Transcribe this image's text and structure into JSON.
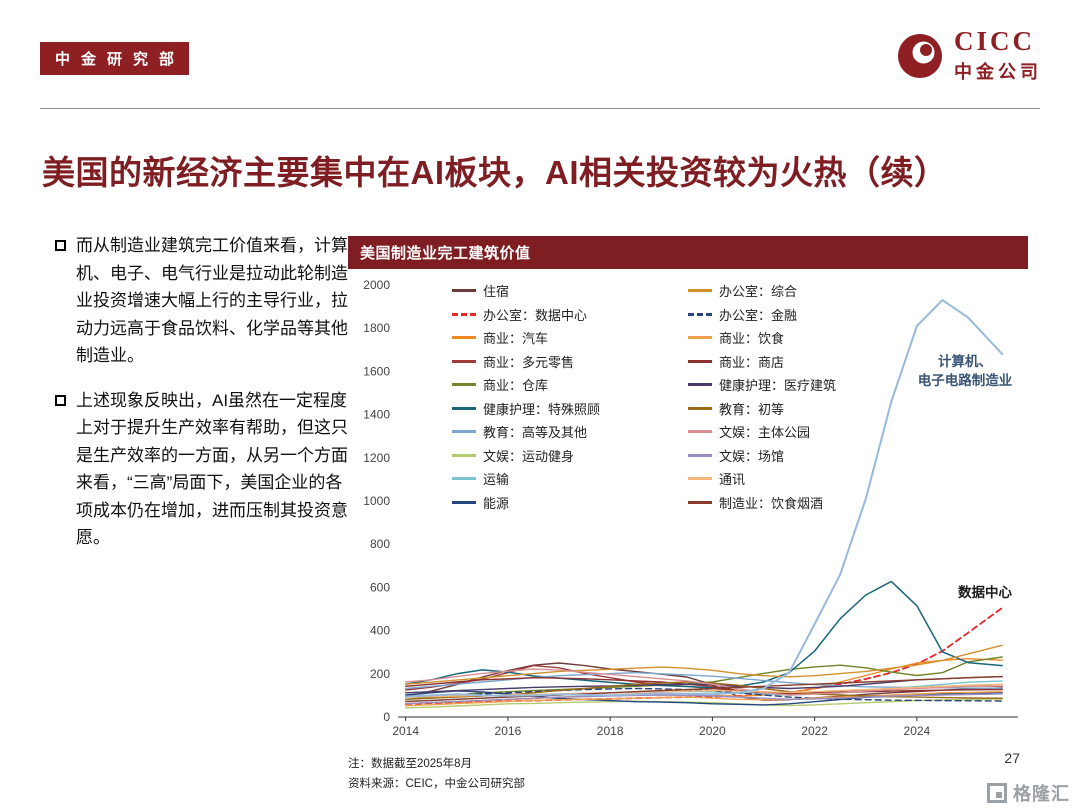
{
  "header": {
    "badge": "中金研究部",
    "logo_title": "CICC",
    "logo_subtitle": "中金公司"
  },
  "slide": {
    "title": "美国的新经济主要集中在AI板块，AI相关投资较为火热（续）",
    "bullets": [
      "而从制造业建筑完工价值来看，计算机、电子、电气行业是拉动此轮制造业投资增速大幅上行的主导行业，拉动力远高于食品饮料、化学品等其他制造业。",
      "上述现象反映出，AI虽然在一定程度上对于提升生产效率有帮助，但这只是生产效率的一方面，从另一个方面来看，“三高”局面下，美国企业的各项成本仍在增加，进而压制其投资意愿。"
    ],
    "page_number": "27"
  },
  "chart": {
    "header": "美国制造业完工建筑价值",
    "note": "注：数据截至2025年8月",
    "source": "资料来源：CEIC，中金公司研究部",
    "annotation_computer": "计算机、\n电子电路制造业",
    "annotation_datacenter": "数据中心"
  },
  "watermark": {
    "text": "格隆汇"
  },
  "colors": {
    "brand": "#8e1f23",
    "chart_header": "#7e1d22",
    "accent_red": "#e8262a"
  },
  "chart_data": {
    "type": "line",
    "title": "美国制造业完工建筑价值",
    "xlabel": "",
    "ylabel": "",
    "xlim": [
      2013.85,
      2025.9
    ],
    "ylim": [
      0,
      2000
    ],
    "yticks": [
      0,
      200,
      400,
      600,
      800,
      1000,
      1200,
      1400,
      1600,
      1800,
      2000
    ],
    "xticks": [
      2014,
      2016,
      2018,
      2020,
      2022,
      2024
    ],
    "grid": false,
    "legend_position": "upper-left-inside",
    "x": [
      2014,
      2014.5,
      2015,
      2015.5,
      2016,
      2016.5,
      2017,
      2017.5,
      2018,
      2018.5,
      2019,
      2019.5,
      2020,
      2020.5,
      2021,
      2021.5,
      2022,
      2022.5,
      2023,
      2023.5,
      2024,
      2024.5,
      2025,
      2025.67
    ],
    "series": [
      {
        "name": "住宿",
        "color": "#6e3b3b",
        "dash": false,
        "values": [
          95,
          120,
          150,
          185,
          215,
          240,
          250,
          238,
          222,
          210,
          198,
          185,
          150,
          95,
          78,
          80,
          88,
          96,
          105,
          112,
          118,
          124,
          130,
          134
        ]
      },
      {
        "name": "办公室：数据中心",
        "color": "#e8262a",
        "dash": true,
        "width": 1.8,
        "values": [
          60,
          64,
          68,
          70,
          73,
          76,
          79,
          82,
          84,
          87,
          90,
          92,
          94,
          97,
          103,
          112,
          132,
          152,
          176,
          205,
          245,
          305,
          390,
          505
        ]
      },
      {
        "name": "商业：汽车",
        "color": "#ef8a22",
        "dash": false,
        "values": [
          62,
          66,
          71,
          76,
          81,
          86,
          91,
          96,
          101,
          106,
          110,
          106,
          100,
          96,
          102,
          112,
          132,
          162,
          192,
          222,
          250,
          262,
          270,
          263
        ]
      },
      {
        "name": "商业：多元零售",
        "color": "#9e3a38",
        "dash": false,
        "values": [
          125,
          138,
          155,
          175,
          205,
          238,
          228,
          202,
          182,
          162,
          150,
          142,
          132,
          122,
          116,
          112,
          116,
          121,
          126,
          131,
          136,
          141,
          146,
          141
        ]
      },
      {
        "name": "商业：仓库",
        "color": "#71832c",
        "dash": false,
        "values": [
          82,
          92,
          102,
          112,
          117,
          122,
          127,
          132,
          137,
          142,
          147,
          153,
          162,
          182,
          202,
          220,
          232,
          240,
          228,
          208,
          192,
          205,
          255,
          278
        ]
      },
      {
        "name": "健康护理：特殊照顾",
        "color": "#17667a",
        "dash": false,
        "width": 1.5,
        "values": [
          152,
          172,
          200,
          218,
          208,
          190,
          180,
          170,
          160,
          152,
          146,
          141,
          136,
          142,
          162,
          205,
          305,
          455,
          565,
          628,
          515,
          302,
          252,
          238
        ]
      },
      {
        "name": "教育：高等及其他",
        "color": "#7aa6cf",
        "dash": false,
        "values": [
          132,
          142,
          152,
          162,
          172,
          182,
          191,
          196,
          201,
          205,
          200,
          195,
          189,
          179,
          169,
          159,
          150,
          145,
          140,
          138,
          136,
          135,
          134,
          133
        ]
      },
      {
        "name": "文娱：运动健身",
        "color": "#b3cc6f",
        "dash": false,
        "values": [
          42,
          46,
          51,
          56,
          61,
          63,
          66,
          69,
          71,
          73,
          71,
          69,
          66,
          61,
          56,
          53,
          56,
          61,
          66,
          71,
          76,
          79,
          81,
          83
        ]
      },
      {
        "name": "运输",
        "color": "#78c3cf",
        "dash": false,
        "values": [
          72,
          77,
          82,
          87,
          92,
          97,
          102,
          107,
          112,
          117,
          121,
          119,
          116,
          111,
          106,
          101,
          106,
          111,
          121,
          131,
          141,
          151,
          161,
          166
        ]
      },
      {
        "name": "能源",
        "color": "#24477e",
        "dash": false,
        "values": [
          102,
          112,
          121,
          116,
          106,
          96,
          86,
          81,
          76,
          71,
          69,
          66,
          61,
          59,
          56,
          61,
          71,
          81,
          91,
          96,
          101,
          106,
          111,
          113
        ]
      },
      {
        "name": "办公室：综合",
        "color": "#d2902c",
        "dash": false,
        "values": [
          152,
          161,
          171,
          181,
          191,
          201,
          211,
          216,
          221,
          226,
          231,
          226,
          216,
          201,
          191,
          186,
          191,
          201,
          211,
          226,
          241,
          262,
          292,
          332
        ]
      },
      {
        "name": "办公室：金融",
        "color": "#27427c",
        "dash": true,
        "values": [
          92,
          97,
          102,
          107,
          112,
          117,
          122,
          127,
          130,
          132,
          130,
          127,
          122,
          112,
          102,
          92,
          87,
          82,
          80,
          78,
          77,
          76,
          75,
          74
        ]
      },
      {
        "name": "商业：饮食",
        "color": "#f0a04e",
        "dash": false,
        "values": [
          52,
          57,
          62,
          67,
          72,
          77,
          80,
          82,
          84,
          87,
          90,
          92,
          87,
          82,
          80,
          82,
          87,
          92,
          97,
          102,
          107,
          112,
          114,
          117
        ]
      },
      {
        "name": "商业：商店",
        "color": "#8e2f2f",
        "dash": false,
        "values": [
          142,
          152,
          162,
          172,
          177,
          182,
          180,
          177,
          172,
          167,
          162,
          152,
          142,
          122,
          112,
          107,
          110,
          114,
          117,
          120,
          122,
          124,
          126,
          127
        ]
      },
      {
        "name": "健康护理：医疗建筑",
        "color": "#4b3a6b",
        "dash": false,
        "values": [
          112,
          117,
          122,
          127,
          132,
          137,
          140,
          142,
          144,
          147,
          150,
          152,
          150,
          142,
          137,
          132,
          137,
          142,
          152,
          162,
          172,
          177,
          182,
          187
        ]
      },
      {
        "name": "教育：初等",
        "color": "#9a6a17",
        "dash": false,
        "values": [
          82,
          87,
          92,
          97,
          102,
          112,
          122,
          132,
          142,
          152,
          157,
          162,
          157,
          147,
          132,
          117,
          107,
          102,
          97,
          94,
          92,
          90,
          88,
          87
        ]
      },
      {
        "name": "文娱：主体公园",
        "color": "#d98f93",
        "dash": false,
        "values": [
          162,
          172,
          187,
          202,
          212,
          222,
          217,
          207,
          197,
          187,
          177,
          167,
          152,
          132,
          112,
          102,
          107,
          112,
          120,
          127,
          132,
          137,
          142,
          144
        ]
      },
      {
        "name": "文娱：场馆",
        "color": "#9a8bc0",
        "dash": false,
        "values": [
          62,
          67,
          72,
          77,
          82,
          87,
          92,
          94,
          97,
          100,
          102,
          100,
          97,
          92,
          87,
          82,
          84,
          87,
          92,
          97,
          100,
          102,
          104,
          107
        ]
      },
      {
        "name": "通讯",
        "color": "#f3b878",
        "dash": false,
        "values": [
          92,
          94,
          97,
          100,
          102,
          104,
          107,
          110,
          112,
          114,
          117,
          120,
          122,
          120,
          117,
          114,
          117,
          122,
          127,
          132,
          137,
          142,
          147,
          152
        ]
      },
      {
        "name": "制造业：饮食烟酒",
        "color": "#8a3c2c",
        "dash": false,
        "values": [
          72,
          77,
          82,
          87,
          92,
          97,
          102,
          107,
          112,
          117,
          122,
          127,
          132,
          137,
          142,
          147,
          152,
          157,
          162,
          167,
          172,
          177,
          182,
          187
        ]
      },
      {
        "name": "计算机、电子电路制造业",
        "color": "#97b9db",
        "dash": false,
        "width": 2,
        "values": [
          95,
          100,
          105,
          100,
          98,
          100,
          105,
          102,
          100,
          105,
          110,
          108,
          105,
          112,
          132,
          205,
          430,
          660,
          1010,
          1460,
          1810,
          1930,
          1850,
          1680
        ]
      }
    ],
    "legend_columns": [
      [
        0,
        1,
        2,
        3,
        4,
        5,
        6,
        7,
        8,
        9
      ],
      [
        10,
        11,
        12,
        13,
        14,
        15,
        16,
        17,
        18,
        19
      ]
    ]
  }
}
